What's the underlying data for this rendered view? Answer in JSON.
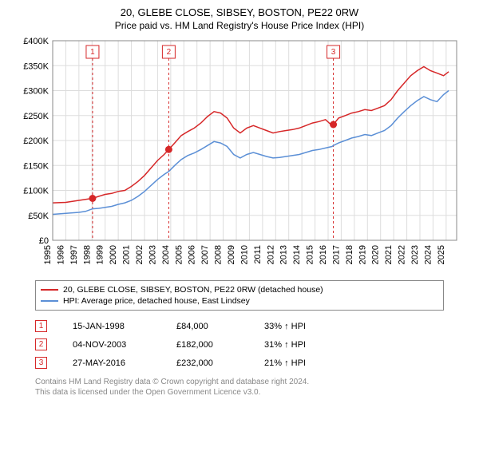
{
  "title": "20, GLEBE CLOSE, SIBSEY, BOSTON, PE22 0RW",
  "subtitle": "Price paid vs. HM Land Registry's House Price Index (HPI)",
  "chart": {
    "type": "line",
    "background_color": "#ffffff",
    "grid_color": "#dddddd",
    "border_color": "#888888",
    "x": {
      "min": 1995,
      "max": 2025.8,
      "ticks": [
        1995,
        1996,
        1997,
        1998,
        1999,
        2000,
        2001,
        2002,
        2003,
        2004,
        2005,
        2006,
        2007,
        2008,
        2009,
        2010,
        2011,
        2012,
        2013,
        2014,
        2015,
        2016,
        2017,
        2018,
        2019,
        2020,
        2021,
        2022,
        2023,
        2024,
        2025
      ],
      "tick_rotation": -90,
      "tick_fontsize": 11
    },
    "y": {
      "min": 0,
      "max": 400000,
      "ticks": [
        0,
        50000,
        100000,
        150000,
        200000,
        250000,
        300000,
        350000,
        400000
      ],
      "tick_labels": [
        "£0",
        "£50K",
        "£100K",
        "£150K",
        "£200K",
        "£250K",
        "£300K",
        "£350K",
        "£400K"
      ],
      "tick_fontsize": 11
    },
    "series": [
      {
        "name": "20, GLEBE CLOSE, SIBSEY, BOSTON, PE22 0RW (detached house)",
        "color": "#d62728",
        "line_width": 1.5,
        "points": [
          [
            1995,
            75000
          ],
          [
            1996,
            76000
          ],
          [
            1997,
            80000
          ],
          [
            1997.5,
            82000
          ],
          [
            1998.04,
            84000
          ],
          [
            1998.5,
            88000
          ],
          [
            1999,
            92000
          ],
          [
            1999.5,
            94000
          ],
          [
            2000,
            98000
          ],
          [
            2000.5,
            100000
          ],
          [
            2001,
            108000
          ],
          [
            2001.5,
            118000
          ],
          [
            2002,
            130000
          ],
          [
            2002.5,
            145000
          ],
          [
            2003,
            160000
          ],
          [
            2003.5,
            172000
          ],
          [
            2003.85,
            182000
          ],
          [
            2004.3,
            195000
          ],
          [
            2004.8,
            210000
          ],
          [
            2005.3,
            218000
          ],
          [
            2005.8,
            225000
          ],
          [
            2006.3,
            235000
          ],
          [
            2006.8,
            248000
          ],
          [
            2007.3,
            258000
          ],
          [
            2007.8,
            255000
          ],
          [
            2008.3,
            245000
          ],
          [
            2008.8,
            225000
          ],
          [
            2009.3,
            215000
          ],
          [
            2009.8,
            225000
          ],
          [
            2010.3,
            230000
          ],
          [
            2010.8,
            225000
          ],
          [
            2011.3,
            220000
          ],
          [
            2011.8,
            215000
          ],
          [
            2012.3,
            218000
          ],
          [
            2012.8,
            220000
          ],
          [
            2013.3,
            222000
          ],
          [
            2013.8,
            225000
          ],
          [
            2014.3,
            230000
          ],
          [
            2014.8,
            235000
          ],
          [
            2015.3,
            238000
          ],
          [
            2015.8,
            242000
          ],
          [
            2016.3,
            230000
          ],
          [
            2016.4,
            232000
          ],
          [
            2016.8,
            245000
          ],
          [
            2017.3,
            250000
          ],
          [
            2017.8,
            255000
          ],
          [
            2018.3,
            258000
          ],
          [
            2018.8,
            262000
          ],
          [
            2019.3,
            260000
          ],
          [
            2019.8,
            265000
          ],
          [
            2020.3,
            270000
          ],
          [
            2020.8,
            282000
          ],
          [
            2021.3,
            300000
          ],
          [
            2021.8,
            315000
          ],
          [
            2022.3,
            330000
          ],
          [
            2022.8,
            340000
          ],
          [
            2023.3,
            348000
          ],
          [
            2023.8,
            340000
          ],
          [
            2024.3,
            335000
          ],
          [
            2024.8,
            330000
          ],
          [
            2025.2,
            338000
          ]
        ]
      },
      {
        "name": "HPI: Average price, detached house, East Lindsey",
        "color": "#5b8fd6",
        "line_width": 1.5,
        "points": [
          [
            1995,
            52000
          ],
          [
            1996,
            54000
          ],
          [
            1997,
            56000
          ],
          [
            1997.5,
            58000
          ],
          [
            1998.04,
            63000
          ],
          [
            1998.5,
            64000
          ],
          [
            1999,
            66000
          ],
          [
            1999.5,
            68000
          ],
          [
            2000,
            72000
          ],
          [
            2000.5,
            75000
          ],
          [
            2001,
            80000
          ],
          [
            2001.5,
            88000
          ],
          [
            2002,
            98000
          ],
          [
            2002.5,
            110000
          ],
          [
            2003,
            122000
          ],
          [
            2003.5,
            132000
          ],
          [
            2003.85,
            138000
          ],
          [
            2004.3,
            150000
          ],
          [
            2004.8,
            162000
          ],
          [
            2005.3,
            170000
          ],
          [
            2005.8,
            175000
          ],
          [
            2006.3,
            182000
          ],
          [
            2006.8,
            190000
          ],
          [
            2007.3,
            198000
          ],
          [
            2007.8,
            195000
          ],
          [
            2008.3,
            188000
          ],
          [
            2008.8,
            172000
          ],
          [
            2009.3,
            165000
          ],
          [
            2009.8,
            172000
          ],
          [
            2010.3,
            176000
          ],
          [
            2010.8,
            172000
          ],
          [
            2011.3,
            168000
          ],
          [
            2011.8,
            165000
          ],
          [
            2012.3,
            166000
          ],
          [
            2012.8,
            168000
          ],
          [
            2013.3,
            170000
          ],
          [
            2013.8,
            172000
          ],
          [
            2014.3,
            176000
          ],
          [
            2014.8,
            180000
          ],
          [
            2015.3,
            182000
          ],
          [
            2015.8,
            185000
          ],
          [
            2016.3,
            188000
          ],
          [
            2016.4,
            190000
          ],
          [
            2016.8,
            195000
          ],
          [
            2017.3,
            200000
          ],
          [
            2017.8,
            205000
          ],
          [
            2018.3,
            208000
          ],
          [
            2018.8,
            212000
          ],
          [
            2019.3,
            210000
          ],
          [
            2019.8,
            215000
          ],
          [
            2020.3,
            220000
          ],
          [
            2020.8,
            230000
          ],
          [
            2021.3,
            245000
          ],
          [
            2021.8,
            258000
          ],
          [
            2022.3,
            270000
          ],
          [
            2022.8,
            280000
          ],
          [
            2023.3,
            288000
          ],
          [
            2023.8,
            282000
          ],
          [
            2024.3,
            278000
          ],
          [
            2024.8,
            292000
          ],
          [
            2025.2,
            300000
          ]
        ]
      }
    ],
    "markers": [
      {
        "n": "1",
        "x": 1998.04,
        "y": 84000,
        "color": "#d62728",
        "y_label_offset": 15
      },
      {
        "n": "2",
        "x": 2003.85,
        "y": 182000,
        "color": "#d62728",
        "y_label_offset": 15
      },
      {
        "n": "3",
        "x": 2016.4,
        "y": 232000,
        "color": "#d62728",
        "y_label_offset": 15
      }
    ]
  },
  "legend": {
    "border_color": "#888888",
    "items": [
      {
        "label": "20, GLEBE CLOSE, SIBSEY, BOSTON, PE22 0RW (detached house)",
        "color": "#d62728"
      },
      {
        "label": "HPI: Average price, detached house, East Lindsey",
        "color": "#5b8fd6"
      }
    ]
  },
  "transactions": {
    "badge_color": "#d62728",
    "rows": [
      {
        "n": "1",
        "date": "15-JAN-1998",
        "price": "£84,000",
        "pct": "33%",
        "dir": "↑",
        "suffix": "HPI"
      },
      {
        "n": "2",
        "date": "04-NOV-2003",
        "price": "£182,000",
        "pct": "31%",
        "dir": "↑",
        "suffix": "HPI"
      },
      {
        "n": "3",
        "date": "27-MAY-2016",
        "price": "£232,000",
        "pct": "21%",
        "dir": "↑",
        "suffix": "HPI"
      }
    ]
  },
  "footer": {
    "line1": "Contains HM Land Registry data © Crown copyright and database right 2024.",
    "line2": "This data is licensed under the Open Government Licence v3.0."
  }
}
